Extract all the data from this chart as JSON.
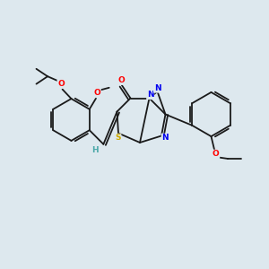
{
  "background_color": "#dde8ee",
  "bond_color": "#1a1a1a",
  "atom_colors": {
    "O": "#ff0000",
    "N": "#0000ee",
    "S": "#ccaa00",
    "H": "#4aa8a8",
    "C": "#1a1a1a"
  },
  "figsize": [
    3.0,
    3.0
  ],
  "dpi": 100
}
